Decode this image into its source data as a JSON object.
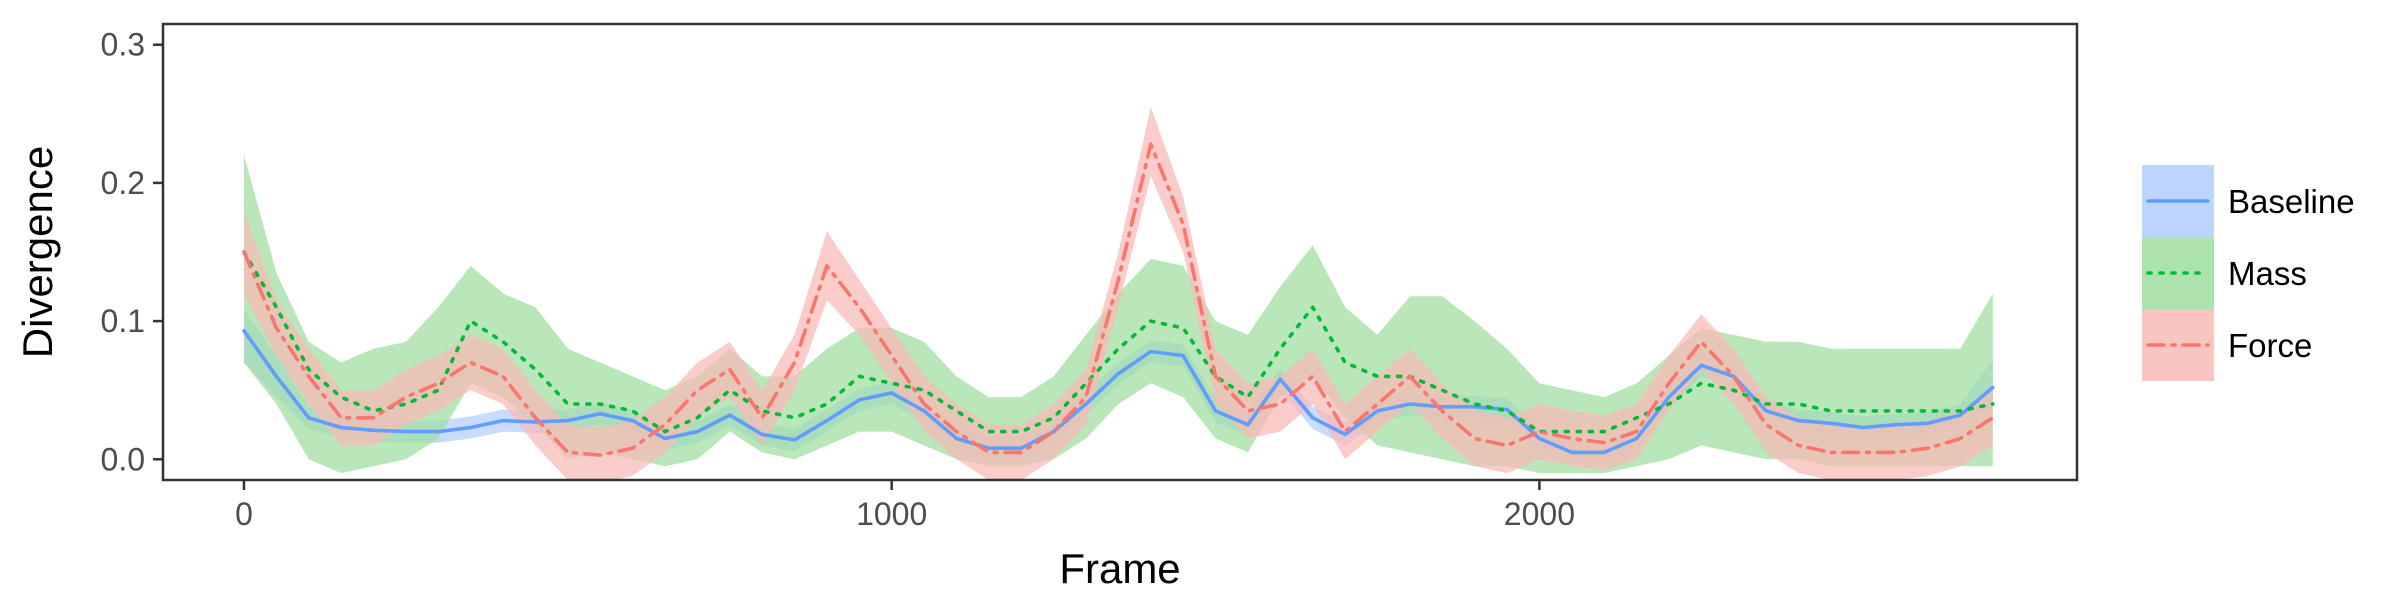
{
  "chart_data": {
    "type": "line",
    "xlabel": "Frame",
    "ylabel": "Divergence",
    "xlim": [
      -125,
      2830
    ],
    "ylim": [
      -0.015,
      0.315
    ],
    "xticks": [
      0,
      1000,
      2000
    ],
    "yticks": [
      0.0,
      0.1,
      0.2,
      0.3
    ],
    "ytick_labels": [
      "0.0",
      "0.1",
      "0.2",
      "0.3"
    ],
    "grid": false,
    "legend_position": "right",
    "series": [
      {
        "name": "Baseline",
        "color": "#619CFF",
        "fill": "#B3CEFF",
        "dash": "solid",
        "x": [
          0,
          50,
          100,
          150,
          200,
          250,
          300,
          350,
          400,
          450,
          500,
          550,
          600,
          650,
          700,
          750,
          800,
          850,
          900,
          950,
          1000,
          1050,
          1100,
          1150,
          1200,
          1250,
          1300,
          1350,
          1400,
          1450,
          1500,
          1550,
          1600,
          1650,
          1700,
          1750,
          1800,
          1850,
          1900,
          1950,
          2000,
          2050,
          2100,
          2150,
          2200,
          2250,
          2300,
          2350,
          2400,
          2450,
          2500,
          2550,
          2600,
          2650,
          2700
        ],
        "y": [
          0.093,
          0.06,
          0.03,
          0.023,
          0.021,
          0.02,
          0.02,
          0.023,
          0.028,
          0.027,
          0.028,
          0.033,
          0.028,
          0.015,
          0.02,
          0.032,
          0.018,
          0.014,
          0.028,
          0.043,
          0.048,
          0.035,
          0.015,
          0.008,
          0.008,
          0.02,
          0.04,
          0.062,
          0.078,
          0.075,
          0.035,
          0.025,
          0.058,
          0.03,
          0.018,
          0.035,
          0.04,
          0.038,
          0.038,
          0.036,
          0.015,
          0.005,
          0.005,
          0.015,
          0.045,
          0.068,
          0.06,
          0.035,
          0.028,
          0.026,
          0.023,
          0.025,
          0.026,
          0.032,
          0.052
        ],
        "lower": [
          0.07,
          0.045,
          0.022,
          0.015,
          0.013,
          0.012,
          0.012,
          0.015,
          0.02,
          0.019,
          0.02,
          0.025,
          0.02,
          0.007,
          0.012,
          0.024,
          0.01,
          0.006,
          0.02,
          0.035,
          0.04,
          0.027,
          0.007,
          0.0,
          0.0,
          0.012,
          0.032,
          0.054,
          0.07,
          0.067,
          0.027,
          0.017,
          0.05,
          0.022,
          0.01,
          0.027,
          0.032,
          0.03,
          0.03,
          0.028,
          0.007,
          -0.003,
          -0.003,
          0.007,
          0.037,
          0.06,
          0.052,
          0.027,
          0.02,
          0.018,
          0.015,
          0.017,
          0.018,
          0.024,
          0.037
        ],
        "upper": [
          0.108,
          0.075,
          0.038,
          0.031,
          0.029,
          0.028,
          0.028,
          0.031,
          0.036,
          0.035,
          0.036,
          0.041,
          0.036,
          0.023,
          0.028,
          0.04,
          0.026,
          0.022,
          0.036,
          0.051,
          0.056,
          0.043,
          0.023,
          0.016,
          0.016,
          0.028,
          0.048,
          0.07,
          0.086,
          0.083,
          0.043,
          0.033,
          0.066,
          0.038,
          0.026,
          0.043,
          0.048,
          0.046,
          0.046,
          0.044,
          0.023,
          0.013,
          0.013,
          0.023,
          0.053,
          0.076,
          0.068,
          0.043,
          0.036,
          0.034,
          0.031,
          0.033,
          0.034,
          0.04,
          0.072
        ]
      },
      {
        "name": "Mass",
        "color": "#00BA38",
        "fill": "#9EDE9E",
        "dash": "dotted",
        "x": [
          0,
          50,
          100,
          150,
          200,
          250,
          300,
          350,
          400,
          450,
          500,
          550,
          600,
          650,
          700,
          750,
          800,
          850,
          900,
          950,
          1000,
          1050,
          1100,
          1150,
          1200,
          1250,
          1300,
          1350,
          1400,
          1450,
          1500,
          1550,
          1600,
          1650,
          1700,
          1750,
          1800,
          1850,
          1900,
          1950,
          2000,
          2050,
          2100,
          2150,
          2200,
          2250,
          2300,
          2350,
          2400,
          2450,
          2500,
          2550,
          2600,
          2650,
          2700
        ],
        "y": [
          0.15,
          0.11,
          0.065,
          0.045,
          0.035,
          0.04,
          0.05,
          0.1,
          0.085,
          0.065,
          0.04,
          0.04,
          0.035,
          0.02,
          0.03,
          0.05,
          0.035,
          0.03,
          0.04,
          0.06,
          0.055,
          0.05,
          0.035,
          0.02,
          0.02,
          0.03,
          0.055,
          0.08,
          0.1,
          0.095,
          0.06,
          0.045,
          0.08,
          0.11,
          0.07,
          0.06,
          0.06,
          0.05,
          0.04,
          0.035,
          0.02,
          0.02,
          0.02,
          0.03,
          0.04,
          0.055,
          0.05,
          0.04,
          0.04,
          0.035,
          0.035,
          0.035,
          0.035,
          0.035,
          0.04
        ],
        "lower": [
          0.07,
          0.04,
          0.0,
          -0.01,
          -0.005,
          0.0,
          0.015,
          0.055,
          0.045,
          0.025,
          0.0,
          0.005,
          0.0,
          -0.005,
          0.0,
          0.02,
          0.005,
          0.0,
          0.01,
          0.02,
          0.02,
          0.01,
          0.0,
          -0.005,
          -0.005,
          0.0,
          0.015,
          0.04,
          0.055,
          0.045,
          0.015,
          0.005,
          0.045,
          0.06,
          0.03,
          0.01,
          0.005,
          0.0,
          -0.005,
          -0.005,
          -0.01,
          -0.01,
          -0.01,
          -0.005,
          0.0,
          0.01,
          0.005,
          0.0,
          0.0,
          -0.005,
          -0.005,
          -0.005,
          -0.005,
          -0.005,
          -0.005
        ],
        "upper": [
          0.22,
          0.135,
          0.085,
          0.07,
          0.08,
          0.085,
          0.11,
          0.14,
          0.12,
          0.11,
          0.08,
          0.07,
          0.06,
          0.05,
          0.06,
          0.08,
          0.06,
          0.06,
          0.08,
          0.095,
          0.095,
          0.085,
          0.06,
          0.045,
          0.045,
          0.06,
          0.09,
          0.12,
          0.145,
          0.14,
          0.1,
          0.09,
          0.125,
          0.155,
          0.11,
          0.09,
          0.118,
          0.118,
          0.1,
          0.08,
          0.055,
          0.05,
          0.045,
          0.055,
          0.075,
          0.095,
          0.09,
          0.085,
          0.085,
          0.08,
          0.08,
          0.08,
          0.08,
          0.08,
          0.12
        ]
      },
      {
        "name": "Force",
        "color": "#F8766D",
        "fill": "#F9BAB5",
        "dash": "dashdot",
        "x": [
          0,
          50,
          100,
          150,
          200,
          250,
          300,
          350,
          400,
          450,
          500,
          550,
          600,
          650,
          700,
          750,
          800,
          850,
          900,
          950,
          1000,
          1050,
          1100,
          1150,
          1200,
          1250,
          1300,
          1350,
          1400,
          1450,
          1500,
          1550,
          1600,
          1650,
          1700,
          1750,
          1800,
          1850,
          1900,
          1950,
          2000,
          2050,
          2100,
          2150,
          2200,
          2250,
          2300,
          2350,
          2400,
          2450,
          2500,
          2550,
          2600,
          2650,
          2700
        ],
        "y": [
          0.15,
          0.095,
          0.06,
          0.03,
          0.03,
          0.045,
          0.055,
          0.07,
          0.06,
          0.03,
          0.005,
          0.003,
          0.008,
          0.025,
          0.05,
          0.065,
          0.03,
          0.07,
          0.14,
          0.11,
          0.075,
          0.04,
          0.02,
          0.005,
          0.005,
          0.02,
          0.045,
          0.13,
          0.228,
          0.17,
          0.06,
          0.035,
          0.04,
          0.06,
          0.02,
          0.04,
          0.06,
          0.035,
          0.015,
          0.01,
          0.02,
          0.015,
          0.012,
          0.02,
          0.055,
          0.085,
          0.06,
          0.025,
          0.01,
          0.005,
          0.005,
          0.005,
          0.008,
          0.015,
          0.03
        ],
        "lower": [
          0.12,
          0.075,
          0.04,
          0.01,
          0.01,
          0.025,
          0.035,
          0.05,
          0.04,
          0.01,
          -0.015,
          -0.017,
          -0.012,
          0.005,
          0.03,
          0.045,
          0.01,
          0.05,
          0.115,
          0.09,
          0.055,
          0.02,
          0.0,
          -0.015,
          -0.015,
          0.0,
          0.025,
          0.11,
          0.205,
          0.15,
          0.04,
          0.015,
          0.02,
          0.04,
          0.0,
          0.02,
          0.04,
          0.015,
          -0.005,
          -0.01,
          0.0,
          -0.005,
          -0.008,
          0.0,
          0.035,
          0.065,
          0.04,
          0.005,
          -0.01,
          -0.015,
          -0.015,
          -0.015,
          -0.012,
          -0.005,
          0.01
        ],
        "upper": [
          0.18,
          0.115,
          0.08,
          0.05,
          0.05,
          0.065,
          0.075,
          0.09,
          0.08,
          0.05,
          0.025,
          0.023,
          0.028,
          0.045,
          0.07,
          0.085,
          0.05,
          0.09,
          0.165,
          0.13,
          0.095,
          0.06,
          0.04,
          0.025,
          0.025,
          0.04,
          0.065,
          0.15,
          0.255,
          0.19,
          0.08,
          0.055,
          0.06,
          0.08,
          0.04,
          0.06,
          0.08,
          0.055,
          0.035,
          0.03,
          0.04,
          0.035,
          0.032,
          0.04,
          0.075,
          0.105,
          0.08,
          0.045,
          0.03,
          0.025,
          0.025,
          0.025,
          0.028,
          0.035,
          0.05
        ]
      }
    ]
  }
}
